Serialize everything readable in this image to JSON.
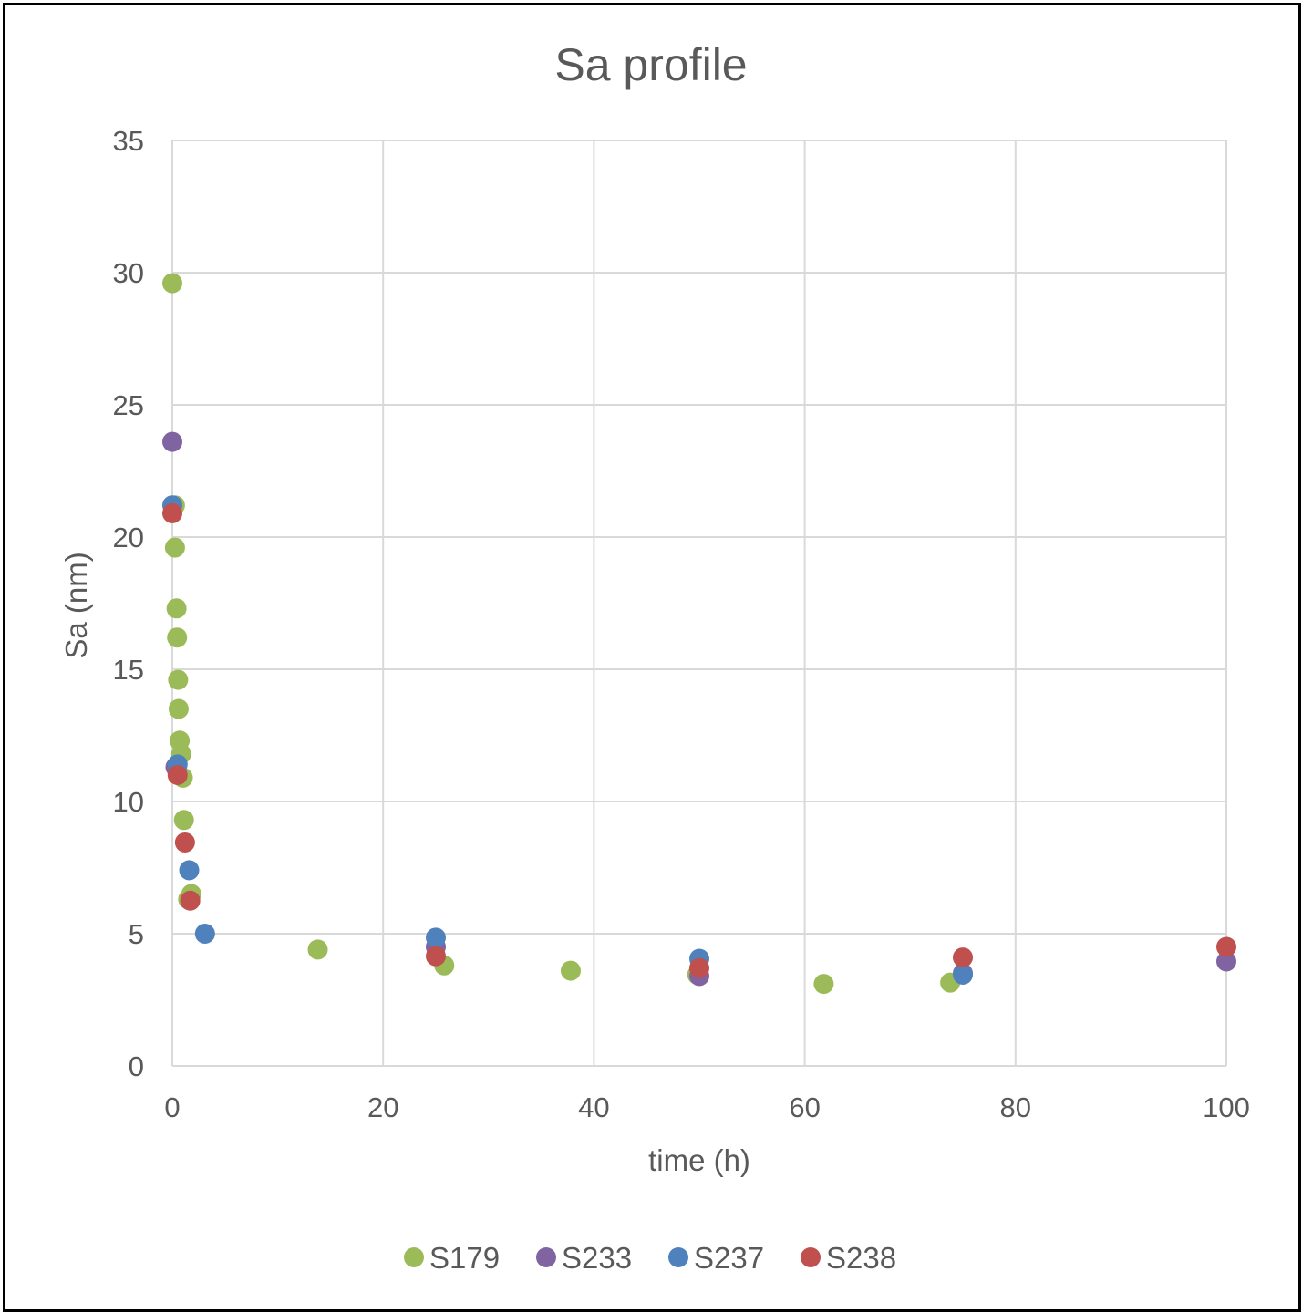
{
  "chart_data": {
    "type": "scatter",
    "title": "Sa profile",
    "xlabel": "time (h)",
    "ylabel": "Sa (nm)",
    "xlim": [
      0,
      100
    ],
    "ylim": [
      0,
      35
    ],
    "xticks": [
      "0",
      "20",
      "40",
      "60",
      "80",
      "100"
    ],
    "yticks": [
      "0",
      "5",
      "10",
      "15",
      "20",
      "25",
      "30",
      "35"
    ],
    "grid": true,
    "legend": "bottom",
    "series": [
      {
        "name": "S179",
        "color": "#9bbb59",
        "points": [
          [
            0,
            29.6
          ],
          [
            0.25,
            21.2
          ],
          [
            0.25,
            19.6
          ],
          [
            0.4,
            17.3
          ],
          [
            0.45,
            16.2
          ],
          [
            0.55,
            14.6
          ],
          [
            0.6,
            13.5
          ],
          [
            0.7,
            12.3
          ],
          [
            0.85,
            11.8
          ],
          [
            1.0,
            10.9
          ],
          [
            1.1,
            9.3
          ],
          [
            1.8,
            6.5
          ],
          [
            1.5,
            6.3
          ],
          [
            13.8,
            4.4
          ],
          [
            25.8,
            3.8
          ],
          [
            37.8,
            3.6
          ],
          [
            49.8,
            3.45
          ],
          [
            61.8,
            3.1
          ],
          [
            73.8,
            3.15
          ]
        ]
      },
      {
        "name": "S233",
        "color": "#8064a2",
        "points": [
          [
            0,
            23.6
          ],
          [
            0.3,
            11.3
          ],
          [
            25,
            4.5
          ],
          [
            50,
            3.4
          ],
          [
            75,
            3.5
          ],
          [
            100,
            3.95
          ]
        ]
      },
      {
        "name": "S237",
        "color": "#4f81bd",
        "points": [
          [
            0,
            21.2
          ],
          [
            0.5,
            11.4
          ],
          [
            1.6,
            7.4
          ],
          [
            3.1,
            5.0
          ],
          [
            25,
            4.85
          ],
          [
            50,
            4.05
          ],
          [
            75,
            3.45
          ]
        ]
      },
      {
        "name": "S238",
        "color": "#c0504d",
        "points": [
          [
            0,
            20.9
          ],
          [
            0.5,
            11.0
          ],
          [
            1.2,
            8.45
          ],
          [
            1.7,
            6.25
          ],
          [
            25,
            4.15
          ],
          [
            50,
            3.7
          ],
          [
            75,
            4.1
          ],
          [
            100,
            4.5
          ]
        ]
      }
    ]
  }
}
